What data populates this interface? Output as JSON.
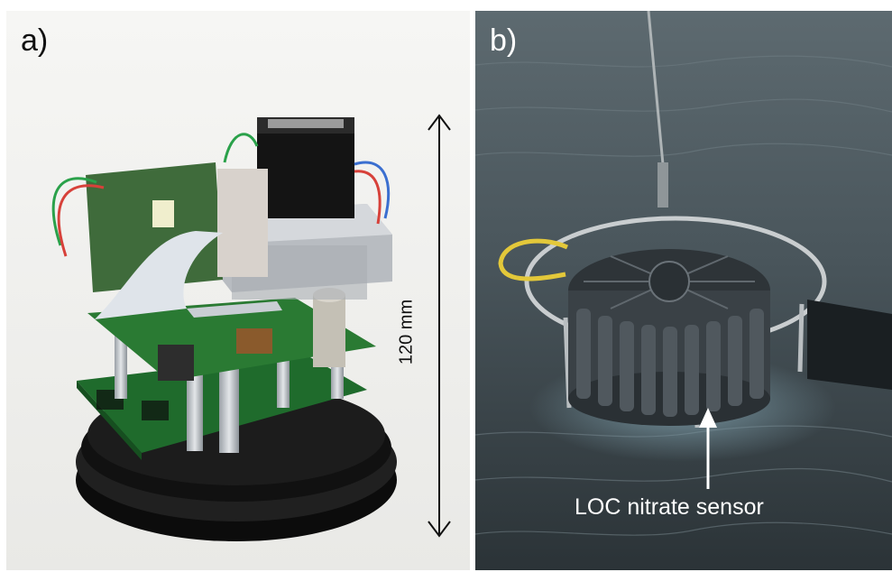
{
  "panel_a": {
    "label": "a)",
    "dimension": "120 mm"
  },
  "panel_b": {
    "label": "b)",
    "annotation": "LOC nitrate sensor"
  }
}
